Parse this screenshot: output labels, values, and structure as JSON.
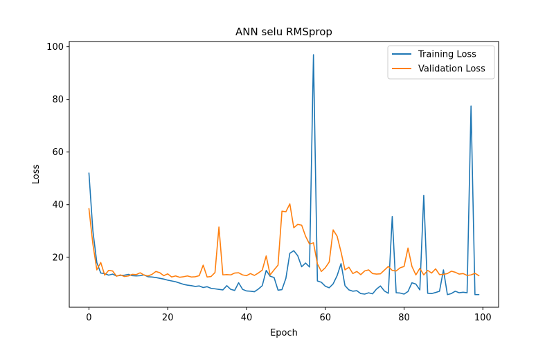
{
  "chart_data": {
    "type": "line",
    "title": "ANN selu RMSprop",
    "xlabel": "Epoch",
    "ylabel": "Loss",
    "xlim": [
      -5,
      104
    ],
    "ylim": [
      1,
      102
    ],
    "xticks": [
      0,
      20,
      40,
      60,
      80,
      100
    ],
    "yticks": [
      20,
      40,
      60,
      80,
      100
    ],
    "grid": false,
    "legend_position": "top-right",
    "series": [
      {
        "name": "Training Loss",
        "color": "#1f77b4",
        "x": [
          0,
          1,
          2,
          3,
          4,
          5,
          6,
          7,
          8,
          9,
          10,
          11,
          12,
          13,
          14,
          15,
          16,
          17,
          18,
          19,
          20,
          21,
          22,
          23,
          24,
          25,
          26,
          27,
          28,
          29,
          30,
          31,
          32,
          33,
          34,
          35,
          36,
          37,
          38,
          39,
          40,
          41,
          42,
          43,
          44,
          45,
          46,
          47,
          48,
          49,
          50,
          51,
          52,
          53,
          54,
          55,
          56,
          57,
          58,
          59,
          60,
          61,
          62,
          63,
          64,
          65,
          66,
          67,
          68,
          69,
          70,
          71,
          72,
          73,
          74,
          75,
          76,
          77,
          78,
          79,
          80,
          81,
          82,
          83,
          84,
          85,
          86,
          87,
          88,
          89,
          90,
          91,
          92,
          93,
          94,
          95,
          96,
          97,
          98,
          99
        ],
        "values": [
          52,
          30,
          18,
          14,
          13.8,
          13.2,
          13.6,
          12.9,
          13.1,
          13.2,
          13.5,
          13.0,
          12.9,
          13.0,
          13.3,
          12.6,
          12.5,
          12.3,
          12.0,
          11.7,
          11.3,
          11.0,
          10.7,
          10.2,
          9.7,
          9.4,
          9.2,
          8.9,
          9.1,
          8.5,
          8.8,
          8.2,
          8.0,
          7.8,
          7.6,
          9.2,
          7.8,
          7.4,
          10.3,
          7.8,
          7.2,
          7.1,
          6.9,
          7.9,
          9.2,
          15.0,
          12.8,
          12.3,
          7.5,
          7.7,
          12.0,
          21.5,
          22.5,
          20.6,
          16.4,
          17.8,
          16.3,
          97,
          11,
          10.5,
          9.0,
          8.4,
          9.9,
          13.0,
          17.6,
          9.2,
          7.6,
          7.1,
          7.3,
          6.2,
          6.0,
          6.5,
          6.1,
          7.9,
          9.1,
          7.2,
          6.3,
          35.5,
          6.5,
          6.4,
          6.0,
          7.0,
          10.3,
          9.8,
          7.6,
          43.5,
          6.3,
          6.2,
          6.6,
          7.1,
          15.2,
          5.8,
          6.2,
          7.1,
          6.5,
          6.7,
          6.5,
          77.5,
          5.8,
          5.8
        ]
      },
      {
        "name": "Validation Loss",
        "color": "#ff7f0e",
        "x": [
          0,
          1,
          2,
          3,
          4,
          5,
          6,
          7,
          8,
          9,
          10,
          11,
          12,
          13,
          14,
          15,
          16,
          17,
          18,
          19,
          20,
          21,
          22,
          23,
          24,
          25,
          26,
          27,
          28,
          29,
          30,
          31,
          32,
          33,
          34,
          35,
          36,
          37,
          38,
          39,
          40,
          41,
          42,
          43,
          44,
          45,
          46,
          47,
          48,
          49,
          50,
          51,
          52,
          53,
          54,
          55,
          56,
          57,
          58,
          59,
          60,
          61,
          62,
          63,
          64,
          65,
          66,
          67,
          68,
          69,
          70,
          71,
          72,
          73,
          74,
          75,
          76,
          77,
          78,
          79,
          80,
          81,
          82,
          83,
          84,
          85,
          86,
          87,
          88,
          89,
          90,
          91,
          92,
          93,
          94,
          95,
          96,
          97,
          98,
          99
        ],
        "values": [
          38.5,
          25,
          15.2,
          18,
          13.2,
          15,
          14.8,
          12.8,
          13.3,
          12.7,
          12.9,
          13.5,
          13.4,
          14.1,
          13.2,
          12.9,
          13.5,
          14.6,
          14.1,
          13.0,
          13.7,
          12.5,
          12.9,
          12.4,
          12.6,
          12.9,
          12.5,
          12.6,
          13.0,
          17.0,
          12.5,
          12.7,
          14.2,
          31.5,
          13.3,
          13.4,
          13.3,
          14.0,
          14.1,
          13.3,
          13.0,
          13.8,
          13.1,
          14.0,
          15.1,
          20.5,
          13.3,
          15.2,
          17.0,
          37.5,
          37.3,
          40.3,
          31.2,
          32.5,
          32.2,
          28.0,
          25.0,
          25.5,
          17.5,
          14.6,
          16.0,
          18.2,
          30.4,
          28.0,
          22.0,
          15.2,
          16.2,
          13.8,
          14.6,
          13.4,
          14.8,
          15.2,
          13.8,
          13.6,
          13.7,
          15.1,
          16.5,
          15.0,
          14.8,
          16.0,
          16.5,
          23.5,
          16.5,
          13.3,
          15.8,
          13.3,
          15.0,
          14.0,
          15.6,
          13.4,
          13.5,
          13.8,
          14.7,
          14.3,
          13.6,
          13.8,
          13.1,
          13.3,
          13.9,
          13.0
        ]
      }
    ]
  }
}
